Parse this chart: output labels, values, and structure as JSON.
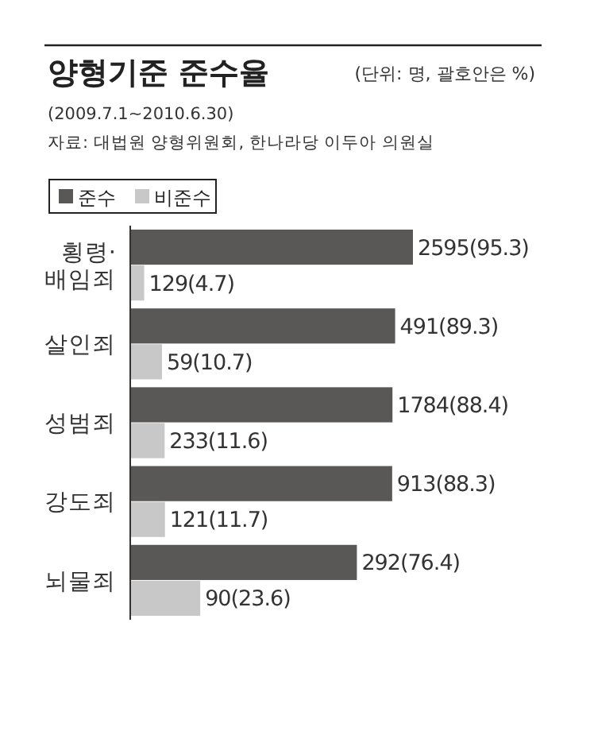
{
  "chart_data": {
    "type": "bar",
    "orientation": "horizontal",
    "title": "양형기준 준수율",
    "subtitle": "(2009.7.1~2010.6.30)",
    "annotations": [
      "(단위: 명, 괄호안은 %)",
      "자료: 대법원 양형위원회, 한나라당 이두아 의원실"
    ],
    "categories": [
      "횡령·배임죄",
      "살인죄",
      "성범죄",
      "강도죄",
      "뇌물죄"
    ],
    "series": [
      {
        "name": "준수",
        "color": "#5a5857",
        "values": [
          95.3,
          89.3,
          88.4,
          88.3,
          76.4
        ],
        "value_labels": [
          "2595(95.3)",
          "491(89.3)",
          "1784(88.4)",
          "913(88.3)",
          "292(76.4)"
        ]
      },
      {
        "name": "비준수",
        "color": "#c8c8c8",
        "values": [
          4.7,
          10.7,
          11.6,
          11.7,
          23.6
        ],
        "value_labels": [
          "129(4.7)",
          "59(10.7)",
          "233(11.6)",
          "121(11.7)",
          "90(23.6)"
        ]
      }
    ],
    "legend": "top left"
  }
}
